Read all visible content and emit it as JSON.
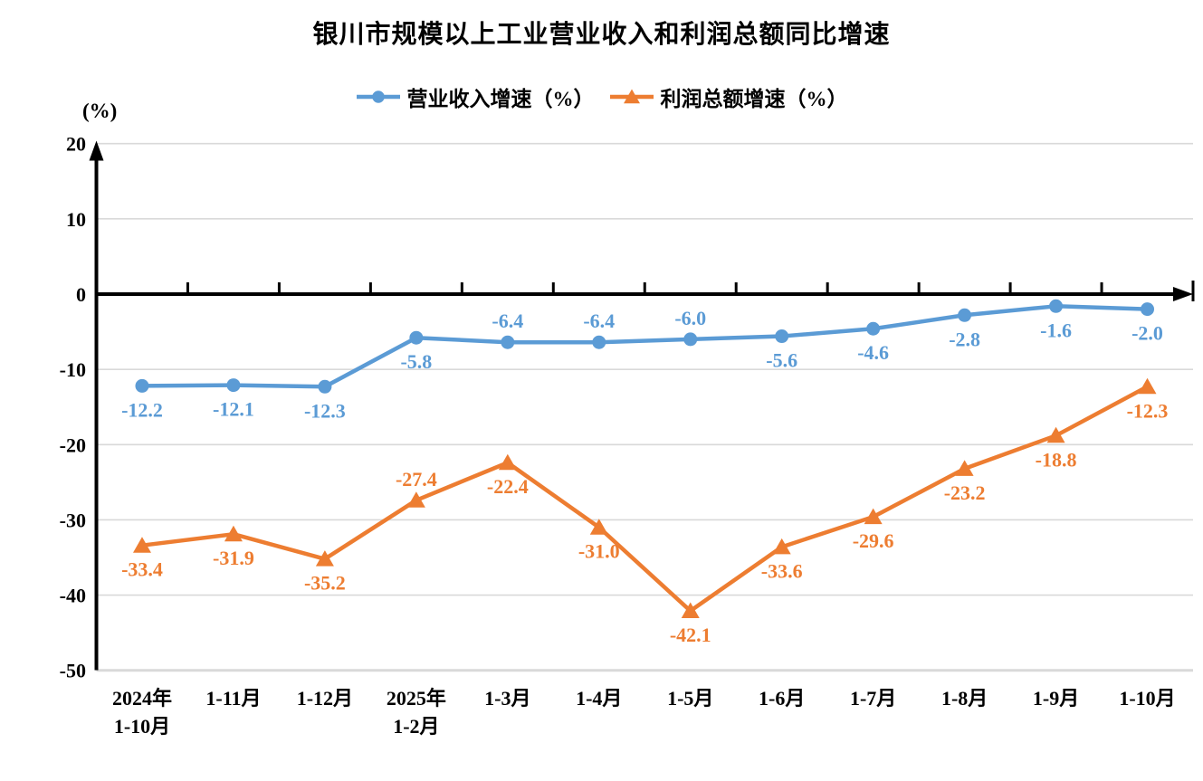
{
  "chart_data": {
    "type": "line",
    "title": "银川市规模以上工业营业收入和利润总额同比增速",
    "y_unit_label": "(%)",
    "ylim": [
      -50,
      20
    ],
    "y_ticks": [
      20,
      10,
      0,
      -10,
      -20,
      -30,
      -40,
      -50
    ],
    "grid": true,
    "legend_position": "top",
    "categories": [
      [
        "2024年",
        "1-10月"
      ],
      [
        "1-11月"
      ],
      [
        "1-12月"
      ],
      [
        "2025年",
        "1-2月"
      ],
      [
        "1-3月"
      ],
      [
        "1-4月"
      ],
      [
        "1-5月"
      ],
      [
        "1-6月"
      ],
      [
        "1-7月"
      ],
      [
        "1-8月"
      ],
      [
        "1-9月"
      ],
      [
        "1-10月"
      ]
    ],
    "series": [
      {
        "name": "营业收入增速（%）",
        "color": "#5B9BD5",
        "marker": "circle",
        "values": [
          -12.2,
          -12.1,
          -12.3,
          -5.8,
          -6.4,
          -6.4,
          -6.0,
          -5.6,
          -4.6,
          -2.8,
          -1.6,
          -2.0
        ],
        "label_positions": [
          "below",
          "below",
          "below",
          "below",
          "above",
          "above",
          "above",
          "below",
          "below",
          "below",
          "below",
          "below"
        ]
      },
      {
        "name": "利润总额增速（%）",
        "color": "#ED7D31",
        "marker": "triangle",
        "values": [
          -33.4,
          -31.9,
          -35.2,
          -27.4,
          -22.4,
          -31.0,
          -42.1,
          -33.6,
          -29.6,
          -23.2,
          -18.8,
          -12.3
        ],
        "label_positions": [
          "below",
          "below",
          "below",
          "above",
          "below",
          "below",
          "below",
          "below",
          "below",
          "below",
          "below",
          "below"
        ]
      }
    ]
  },
  "colors": {
    "axis": "#000000",
    "grid": "#D9D9D9",
    "text": "#000000",
    "background": "#FFFFFF"
  }
}
